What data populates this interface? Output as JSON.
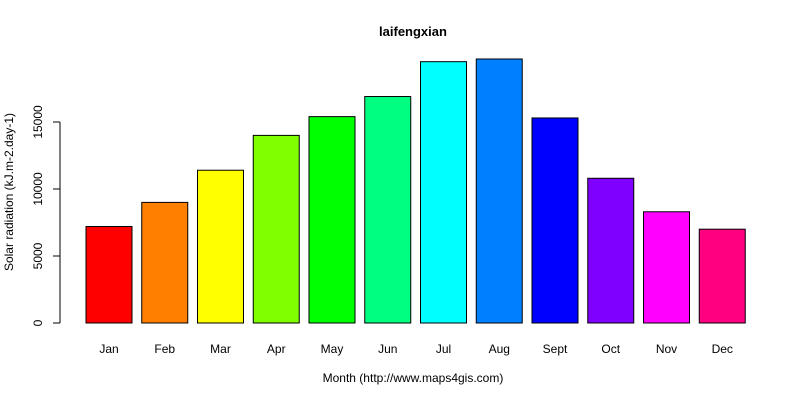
{
  "chart_data": {
    "type": "bar",
    "title": "laifengxian",
    "xlabel": "Month (http://www.maps4gis.com)",
    "ylabel": "Solar radiation (kJ.m-2.day-1)",
    "categories": [
      "Jan",
      "Feb",
      "Mar",
      "Apr",
      "May",
      "Jun",
      "Jul",
      "Aug",
      "Sept",
      "Oct",
      "Nov",
      "Dec"
    ],
    "values": [
      7200,
      9000,
      11400,
      14000,
      15400,
      16900,
      19500,
      19700,
      15300,
      10800,
      8300,
      7000
    ],
    "colors": [
      "#FF0000",
      "#FF8000",
      "#FFFF00",
      "#80FF00",
      "#00FF00",
      "#00FF80",
      "#00FFFF",
      "#0080FF",
      "#0000FF",
      "#8000FF",
      "#FF00FF",
      "#FF0080"
    ],
    "ylim": [
      0,
      19700
    ],
    "yticks": [
      0,
      5000,
      10000,
      15000
    ],
    "grid": false,
    "legend": "none"
  }
}
